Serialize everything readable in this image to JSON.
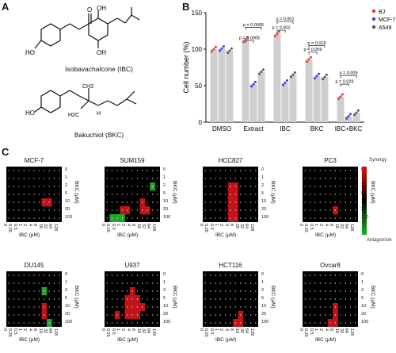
{
  "panels": {
    "A": "A",
    "B": "B",
    "C": "C"
  },
  "molecules": [
    {
      "name": "Isobavachalcone (IBC)",
      "atoms": [
        "HO",
        "OH",
        "O",
        "OH"
      ]
    },
    {
      "name": "Bakuchiol (BKC)",
      "atoms": [
        "HO",
        "CH3",
        "H2C",
        "H"
      ]
    }
  ],
  "chart_data": {
    "type": "bar",
    "ylabel": "Cell number (%)",
    "ylim": [
      0,
      150
    ],
    "yticks": [
      "0",
      "50",
      "100",
      "150"
    ],
    "categories": [
      "DMSO",
      "Extract",
      "IBC",
      "BKC",
      "IBC+BKC"
    ],
    "series": [
      {
        "name": "BJ",
        "color": "#e23b2e",
        "values": [
          100,
          113,
          121,
          86,
          35
        ]
      },
      {
        "name": "MCF-7",
        "color": "#3340d6",
        "values": [
          101,
          52,
          54,
          63,
          8
        ]
      },
      {
        "name": "A549",
        "color": "#555555",
        "values": [
          98,
          69,
          65,
          62,
          13
        ]
      }
    ],
    "annotations": [
      {
        "text": "p = 0.0005"
      },
      {
        "text": "p = 0.0005"
      },
      {
        "text": "p = 0.001"
      },
      {
        "text": "p = 0.002"
      },
      {
        "text": "p = 0.016"
      },
      {
        "text": "p = 0.009"
      },
      {
        "text": "p = 0.009"
      },
      {
        "text": "p = 0.029"
      }
    ]
  },
  "heatmaps": {
    "xlabel": "IBC (μM)",
    "ylabel": "BKC (μM)",
    "xticks": [
      "0",
      "0.25",
      "0.5",
      "1",
      "2",
      "4",
      "8",
      "16",
      "32",
      "64",
      "128"
    ],
    "yticks": [
      "0",
      "1",
      "2",
      "5",
      "10",
      "20",
      "100"
    ],
    "legend_top": "Synergy",
    "legend_bottom": "Antagonism",
    "items": [
      {
        "title": "MCF-7",
        "cells": [
          [
            4,
            7,
            "r"
          ],
          [
            4,
            8,
            "r"
          ]
        ]
      },
      {
        "title": "SUM159",
        "cells": [
          [
            2,
            9,
            "g"
          ],
          [
            5,
            3,
            "r"
          ],
          [
            5,
            4,
            "r"
          ],
          [
            4,
            7,
            "r"
          ],
          [
            5,
            7,
            "r"
          ],
          [
            5,
            8,
            "r"
          ],
          [
            6,
            1,
            "g"
          ],
          [
            6,
            2,
            "g"
          ],
          [
            6,
            3,
            "g"
          ]
        ]
      },
      {
        "title": "HCC827",
        "cells": [
          [
            2,
            5,
            "r"
          ],
          [
            3,
            5,
            "r"
          ],
          [
            4,
            5,
            "r"
          ],
          [
            5,
            5,
            "r"
          ],
          [
            6,
            5,
            "r"
          ],
          [
            2,
            6,
            "r"
          ],
          [
            3,
            6,
            "r"
          ],
          [
            4,
            6,
            "r"
          ],
          [
            5,
            6,
            "r"
          ],
          [
            6,
            6,
            "r"
          ]
        ]
      },
      {
        "title": "PC3",
        "cells": [
          [
            5,
            6,
            "r"
          ]
        ]
      },
      {
        "title": "DU145",
        "cells": [
          [
            2,
            7,
            "g"
          ],
          [
            4,
            7,
            "r"
          ],
          [
            5,
            7,
            "r"
          ],
          [
            6,
            8,
            "g"
          ]
        ]
      },
      {
        "title": "U937",
        "cells": [
          [
            2,
            5,
            "r"
          ],
          [
            3,
            4,
            "r"
          ],
          [
            3,
            5,
            "r"
          ],
          [
            3,
            6,
            "r"
          ],
          [
            4,
            4,
            "r"
          ],
          [
            4,
            5,
            "r"
          ],
          [
            4,
            6,
            "r"
          ],
          [
            4,
            7,
            "r"
          ],
          [
            5,
            2,
            "r"
          ],
          [
            5,
            4,
            "r"
          ],
          [
            5,
            5,
            "r"
          ],
          [
            5,
            6,
            "r"
          ]
        ]
      },
      {
        "title": "HCT116",
        "cells": [
          [
            5,
            7,
            "r"
          ],
          [
            6,
            6,
            "r"
          ],
          [
            6,
            7,
            "r"
          ]
        ]
      },
      {
        "title": "Ovcar8",
        "cells": [
          [
            4,
            6,
            "r"
          ],
          [
            5,
            6,
            "r"
          ],
          [
            6,
            5,
            "r"
          ],
          [
            6,
            6,
            "r"
          ]
        ]
      }
    ]
  }
}
